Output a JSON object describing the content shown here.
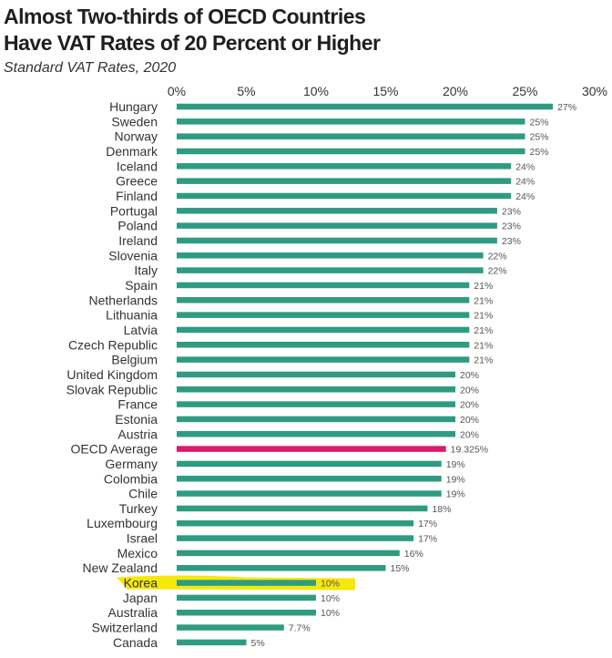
{
  "header": {
    "title_line1": "Almost Two-thirds of OECD Countries",
    "title_line2": "Have VAT Rates of 20 Percent or Higher",
    "subtitle": "Standard VAT Rates, 2020"
  },
  "colors": {
    "bar": "#2e9b82",
    "average": "#d81b6a",
    "highlight": "#f5e600"
  },
  "chart_data": {
    "type": "bar",
    "orientation": "horizontal",
    "title": "Almost Two-thirds of OECD Countries Have VAT Rates of 20 Percent or Higher",
    "subtitle": "Standard VAT Rates, 2020",
    "xlabel": "",
    "ylabel": "",
    "xlim": [
      0,
      30
    ],
    "x_ticks": [
      "0%",
      "5%",
      "10%",
      "15%",
      "20%",
      "25%",
      "30%"
    ],
    "x_tick_values": [
      0,
      5,
      10,
      15,
      20,
      25,
      30
    ],
    "grid": false,
    "highlighted_category": "Korea",
    "average_category": "OECD Average",
    "categories": [
      "Hungary",
      "Sweden",
      "Norway",
      "Denmark",
      "Iceland",
      "Greece",
      "Finland",
      "Portugal",
      "Poland",
      "Ireland",
      "Slovenia",
      "Italy",
      "Spain",
      "Netherlands",
      "Lithuania",
      "Latvia",
      "Czech Republic",
      "Belgium",
      "United Kingdom",
      "Slovak Republic",
      "France",
      "Estonia",
      "Austria",
      "OECD Average",
      "Germany",
      "Colombia",
      "Chile",
      "Turkey",
      "Luxembourg",
      "Israel",
      "Mexico",
      "New Zealand",
      "Korea",
      "Japan",
      "Australia",
      "Switzerland",
      "Canada"
    ],
    "values": [
      27,
      25,
      25,
      25,
      24,
      24,
      24,
      23,
      23,
      23,
      22,
      22,
      21,
      21,
      21,
      21,
      21,
      21,
      20,
      20,
      20,
      20,
      20,
      19.325,
      19,
      19,
      19,
      18,
      17,
      17,
      16,
      15,
      10,
      10,
      10,
      7.7,
      5
    ],
    "labels": [
      "27%",
      "25%",
      "25%",
      "25%",
      "24%",
      "24%",
      "24%",
      "23%",
      "23%",
      "23%",
      "22%",
      "22%",
      "21%",
      "21%",
      "21%",
      "21%",
      "21%",
      "21%",
      "20%",
      "20%",
      "20%",
      "20%",
      "20%",
      "19.325%",
      "19%",
      "19%",
      "19%",
      "18%",
      "17%",
      "17%",
      "16%",
      "15%",
      "10%",
      "10%",
      "10%",
      "7.7%",
      "5%"
    ]
  }
}
